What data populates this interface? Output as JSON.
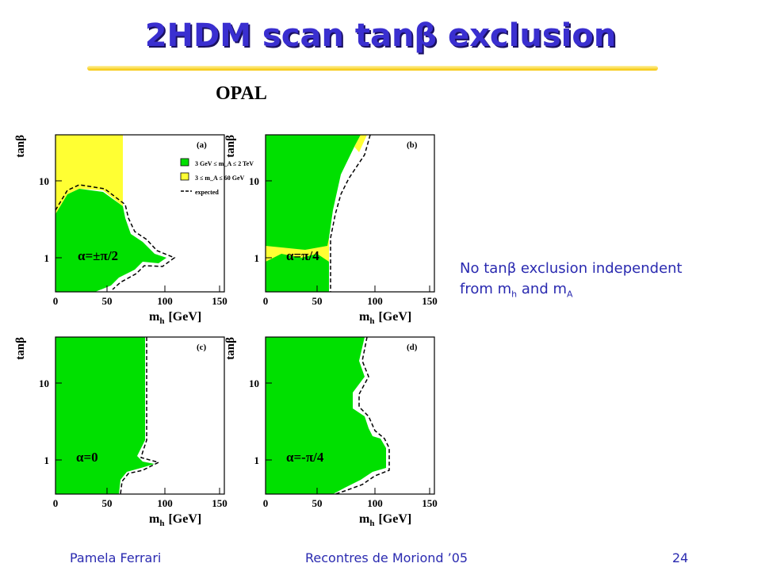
{
  "header": {
    "title": "2HDM scan tanβ exclusion"
  },
  "experiment": "OPAL",
  "axes": {
    "ylabel": "tanβ",
    "xticks": [
      "0",
      "50",
      "100",
      "150"
    ],
    "yticks": [
      "1",
      "10"
    ],
    "xlabel": {
      "base": "m",
      "sub": "h",
      "unit": "[GeV]"
    }
  },
  "panels": [
    {
      "tag": "(a)",
      "label": "α=±π/2"
    },
    {
      "tag": "(b)",
      "label": "α=π/4"
    },
    {
      "tag": "(c)",
      "label": "α=0"
    },
    {
      "tag": "(d)",
      "label": "α=-π/4"
    }
  ],
  "legend": [
    "3 GeV ≤ m_A ≤ 2 TeV",
    "3 ≤ m_A ≤ 60 GeV",
    "expected"
  ],
  "note": {
    "line1": "No tanβ exclusion independent",
    "line2": [
      "from m",
      "h",
      "and m",
      "A"
    ]
  },
  "footer": {
    "author": "Pamela Ferrari",
    "event": "Recontres de Moriond ’05",
    "page": "24"
  }
}
